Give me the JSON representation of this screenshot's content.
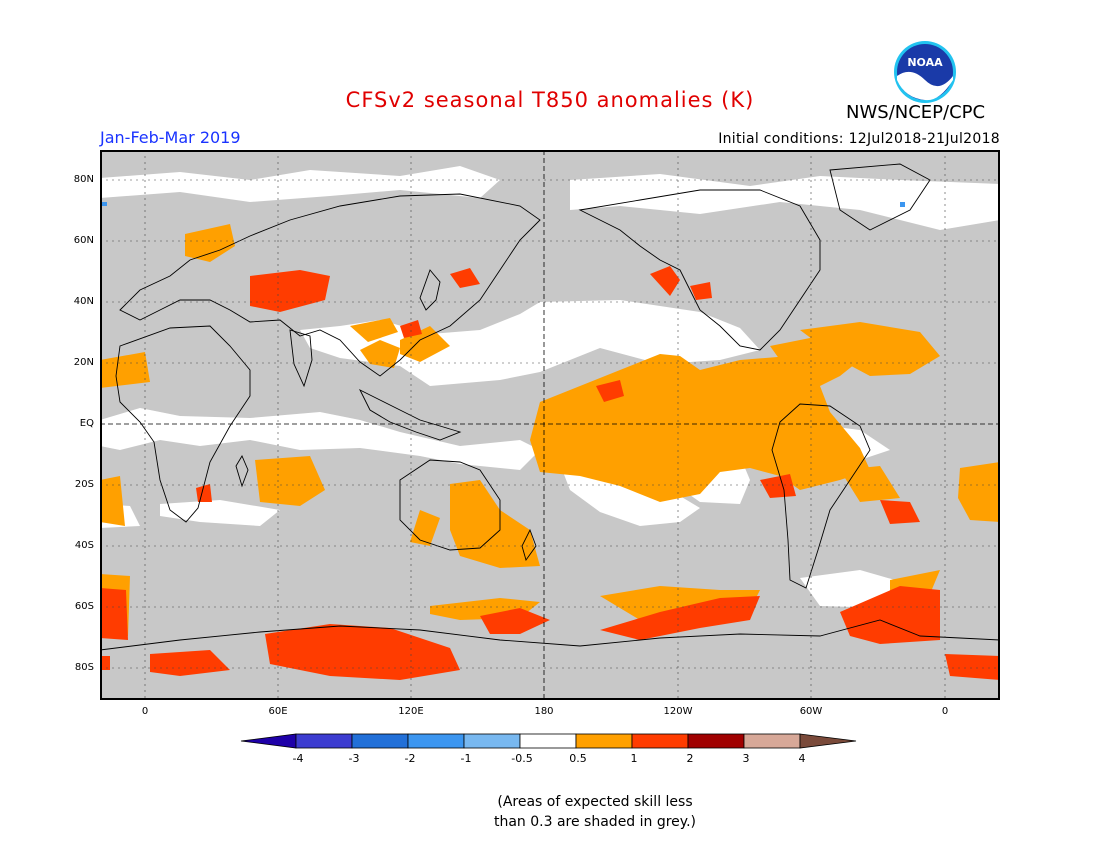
{
  "header": {
    "title": "CFSv2 seasonal T850 anomalies (K)",
    "agency": "NWS/NCEP/CPC",
    "season": "Jan-Feb-Mar 2019",
    "initial_conditions": "Initial conditions: 12Jul2018-21Jul2018",
    "logo_text": "NOAA"
  },
  "map": {
    "lat_labels": [
      "80N",
      "60N",
      "40N",
      "20N",
      "EQ",
      "20S",
      "40S",
      "60S",
      "80S"
    ],
    "lon_labels": [
      "0",
      "60E",
      "120E",
      "180",
      "120W",
      "60W",
      "0"
    ],
    "grey_meaning": "skill < 0.3",
    "colors": {
      "grey": "#c8c8c8",
      "land_line": "#000000",
      "ocean": "#ffffff"
    }
  },
  "colorbar": {
    "labels": [
      "-4",
      "-3",
      "-2",
      "-1",
      "-0.5",
      "0.5",
      "1",
      "2",
      "3",
      "4"
    ],
    "colors": [
      "#1e00a8",
      "#3c3cd0",
      "#2270d8",
      "#3c96f0",
      "#78b8f0",
      "#ffffff",
      "#ffa000",
      "#ff3c00",
      "#a00000",
      "#d7a898",
      "#7a4a3a"
    ]
  },
  "note": {
    "line1": "(Areas of expected skill less",
    "line2": "than 0.3 are shaded in grey.)"
  }
}
